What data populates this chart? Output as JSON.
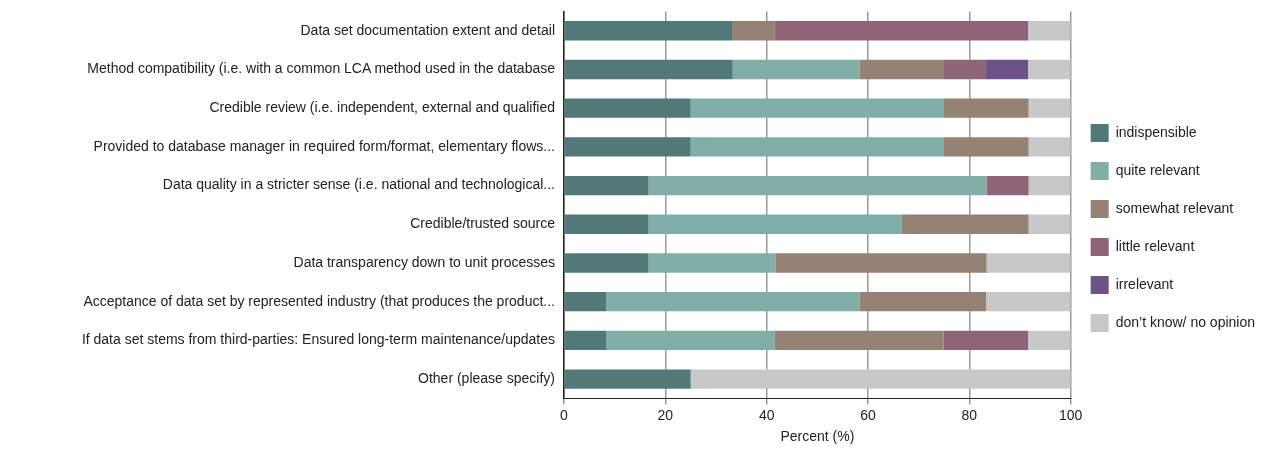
{
  "chart_data": {
    "type": "bar",
    "orientation": "horizontal",
    "stacked": true,
    "xlabel": "Percent (%)",
    "xlim": [
      0,
      100
    ],
    "xticks": [
      0,
      20,
      40,
      60,
      80,
      100
    ],
    "grid": "x",
    "legend": "right",
    "categories": [
      "Data set documentation extent and detail",
      "Method compatibility (i.e. with a common LCA method used in the database",
      "Credible review (i.e. independent, external and qualified",
      "Provided to database manager in required form/format, elementary flows...",
      "Data quality in a stricter sense (i.e. national and technological...",
      "Credible/trusted source",
      "Data transparency down to unit processes",
      "Acceptance of data set by represented industry (that produces the product...",
      "If data set stems from third-parties: Ensured long-term maintenance/updates",
      "Other (please specify)"
    ],
    "series": [
      {
        "name": "indispensible",
        "color": "#527878",
        "values": [
          33.3,
          33.3,
          25,
          25,
          16.7,
          16.7,
          16.7,
          8.3,
          8.3,
          25
        ]
      },
      {
        "name": "quite relevant",
        "color": "#82aea8",
        "values": [
          0,
          25,
          50,
          50,
          66.7,
          50,
          25,
          50,
          33.3,
          0
        ]
      },
      {
        "name": "somewhat relevant",
        "color": "#948275",
        "values": [
          8.3,
          16.7,
          16.7,
          16.7,
          0,
          25,
          41.7,
          25,
          33.3,
          0
        ]
      },
      {
        "name": "little relevant",
        "color": "#8e6479",
        "values": [
          50,
          8.3,
          0,
          0,
          8.3,
          0,
          0,
          0,
          16.7,
          0
        ]
      },
      {
        "name": "irrelevant",
        "color": "#6b5389",
        "values": [
          0,
          8.3,
          0,
          0,
          0,
          0,
          0,
          0,
          0,
          0
        ]
      },
      {
        "name": "don’t know/ no opinion",
        "color": "#c8c8c8",
        "values": [
          8.4,
          8.4,
          8.3,
          8.3,
          8.3,
          8.3,
          16.6,
          16.7,
          8.4,
          75
        ]
      }
    ]
  }
}
